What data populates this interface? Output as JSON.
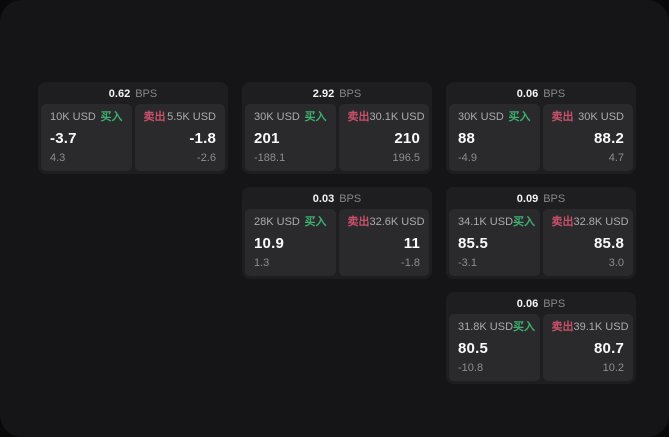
{
  "labels": {
    "buy": "买入",
    "sell": "卖出",
    "bps_unit": "BPS"
  },
  "colors": {
    "buy_accent": "#3db070",
    "sell_accent": "#c8506a",
    "page_background": "#151517",
    "card_background": "#1e1e20",
    "panel_background": "#2a2a2c"
  },
  "cards": [
    {
      "row": 1,
      "col": 1,
      "bps": "0.62",
      "buy": {
        "size": "10K USD",
        "price": "-3.7",
        "delta": "4.3"
      },
      "sell": {
        "size": "5.5K USD",
        "price": "-1.8",
        "delta": "-2.6"
      }
    },
    {
      "row": 1,
      "col": 2,
      "bps": "2.92",
      "buy": {
        "size": "30K USD",
        "price": "201",
        "delta": "-188.1"
      },
      "sell": {
        "size": "30.1K USD",
        "price": "210",
        "delta": "196.5"
      }
    },
    {
      "row": 1,
      "col": 3,
      "bps": "0.06",
      "buy": {
        "size": "30K USD",
        "price": "88",
        "delta": "-4.9"
      },
      "sell": {
        "size": "30K USD",
        "price": "88.2",
        "delta": "4.7"
      }
    },
    {
      "row": 2,
      "col": 2,
      "bps": "0.03",
      "buy": {
        "size": "28K USD",
        "price": "10.9",
        "delta": "1.3"
      },
      "sell": {
        "size": "32.6K USD",
        "price": "11",
        "delta": "-1.8"
      }
    },
    {
      "row": 2,
      "col": 3,
      "bps": "0.09",
      "buy": {
        "size": "34.1K USD",
        "price": "85.5",
        "delta": "-3.1"
      },
      "sell": {
        "size": "32.8K USD",
        "price": "85.8",
        "delta": "3.0"
      }
    },
    {
      "row": 3,
      "col": 3,
      "bps": "0.06",
      "buy": {
        "size": "31.8K USD",
        "price": "80.5",
        "delta": "-10.8"
      },
      "sell": {
        "size": "39.1K USD",
        "price": "80.7",
        "delta": "10.2"
      }
    }
  ]
}
